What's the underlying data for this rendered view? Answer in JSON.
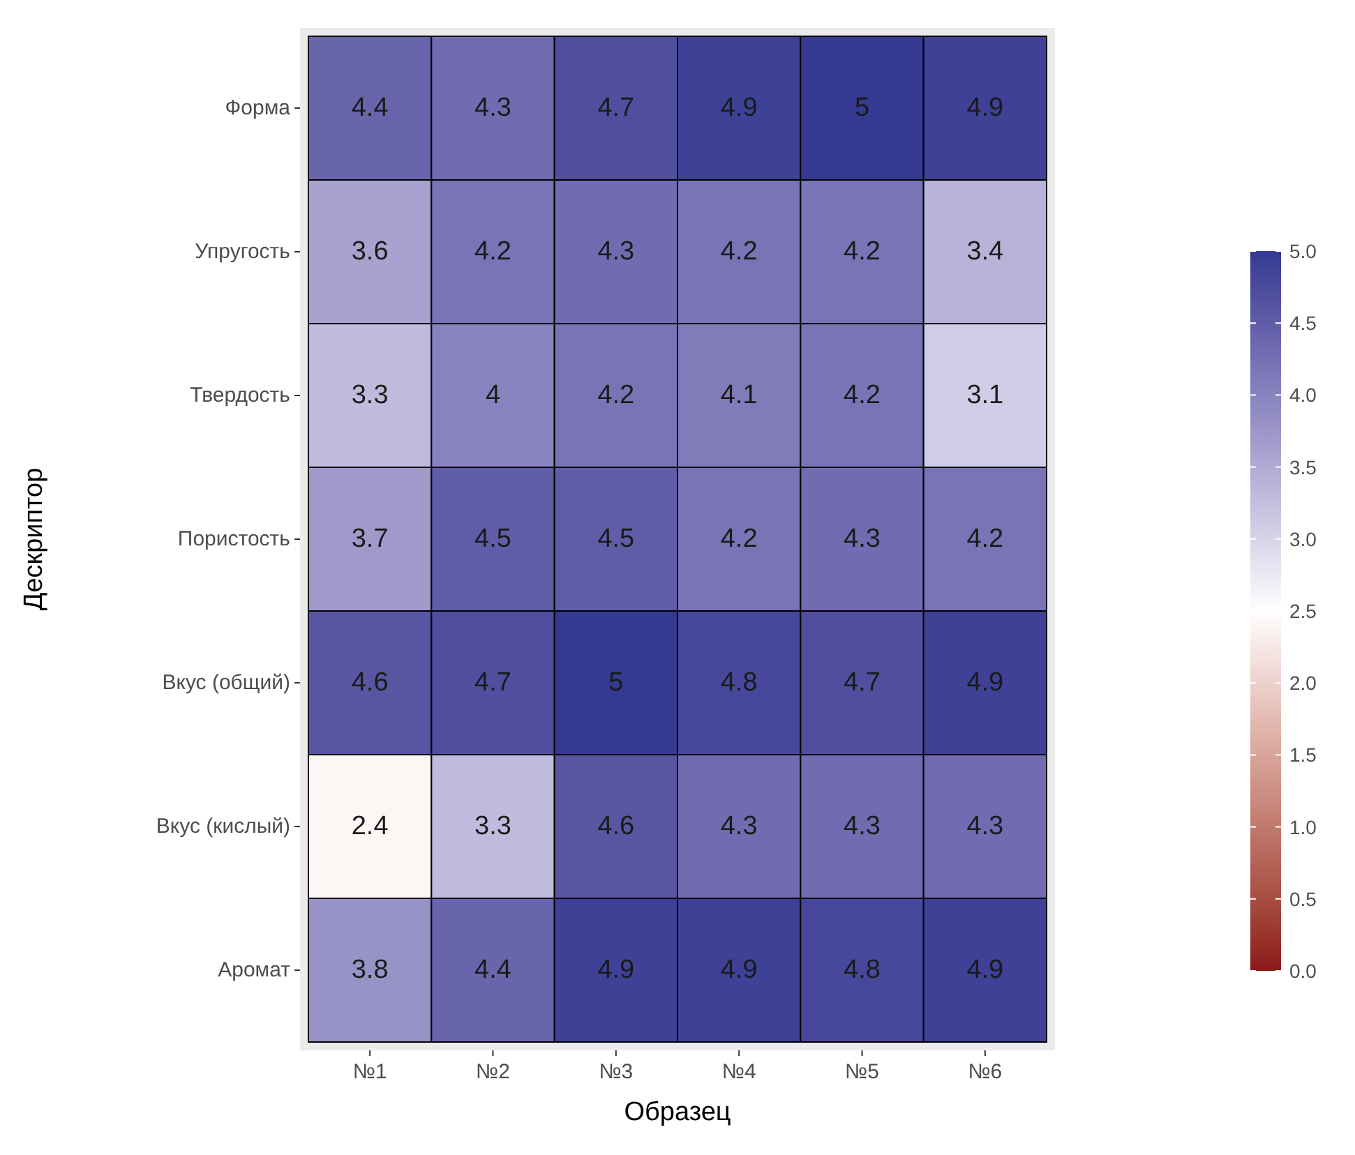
{
  "chart_data": {
    "type": "heatmap",
    "xlabel": "Образец",
    "ylabel": "Дескриптор",
    "categories": [
      "№1",
      "№2",
      "№3",
      "№4",
      "№5",
      "№6"
    ],
    "y_categories": [
      "Форма",
      "Упругость",
      "Твердость",
      "Пористость",
      "Вкус (общий)",
      "Вкус (кислый)",
      "Аромат"
    ],
    "cells": [
      [
        4.4,
        4.3,
        4.7,
        4.9,
        5,
        4.9
      ],
      [
        3.6,
        4.2,
        4.3,
        4.2,
        4.2,
        3.4
      ],
      [
        3.3,
        4,
        4.2,
        4.1,
        4.2,
        3.1
      ],
      [
        3.7,
        4.5,
        4.5,
        4.2,
        4.3,
        4.2
      ],
      [
        4.6,
        4.7,
        5,
        4.8,
        4.7,
        4.9
      ],
      [
        2.4,
        3.3,
        4.6,
        4.3,
        4.3,
        4.3
      ],
      [
        3.8,
        4.4,
        4.9,
        4.9,
        4.8,
        4.9
      ]
    ],
    "data_labels": true,
    "clim": [
      0,
      5
    ],
    "cticks": [
      {
        "value": 0,
        "label": "0.0"
      },
      {
        "value": 0.5,
        "label": "0.5"
      },
      {
        "value": 1,
        "label": "1.0"
      },
      {
        "value": 1.5,
        "label": "1.5"
      },
      {
        "value": 2,
        "label": "2.0"
      },
      {
        "value": 2.5,
        "label": "2.5"
      },
      {
        "value": 3,
        "label": "3.0"
      },
      {
        "value": 3.5,
        "label": "3.5"
      },
      {
        "value": 4,
        "label": "4.0"
      },
      {
        "value": 4.5,
        "label": "4.5"
      },
      {
        "value": 5,
        "label": "5.0"
      }
    ]
  }
}
